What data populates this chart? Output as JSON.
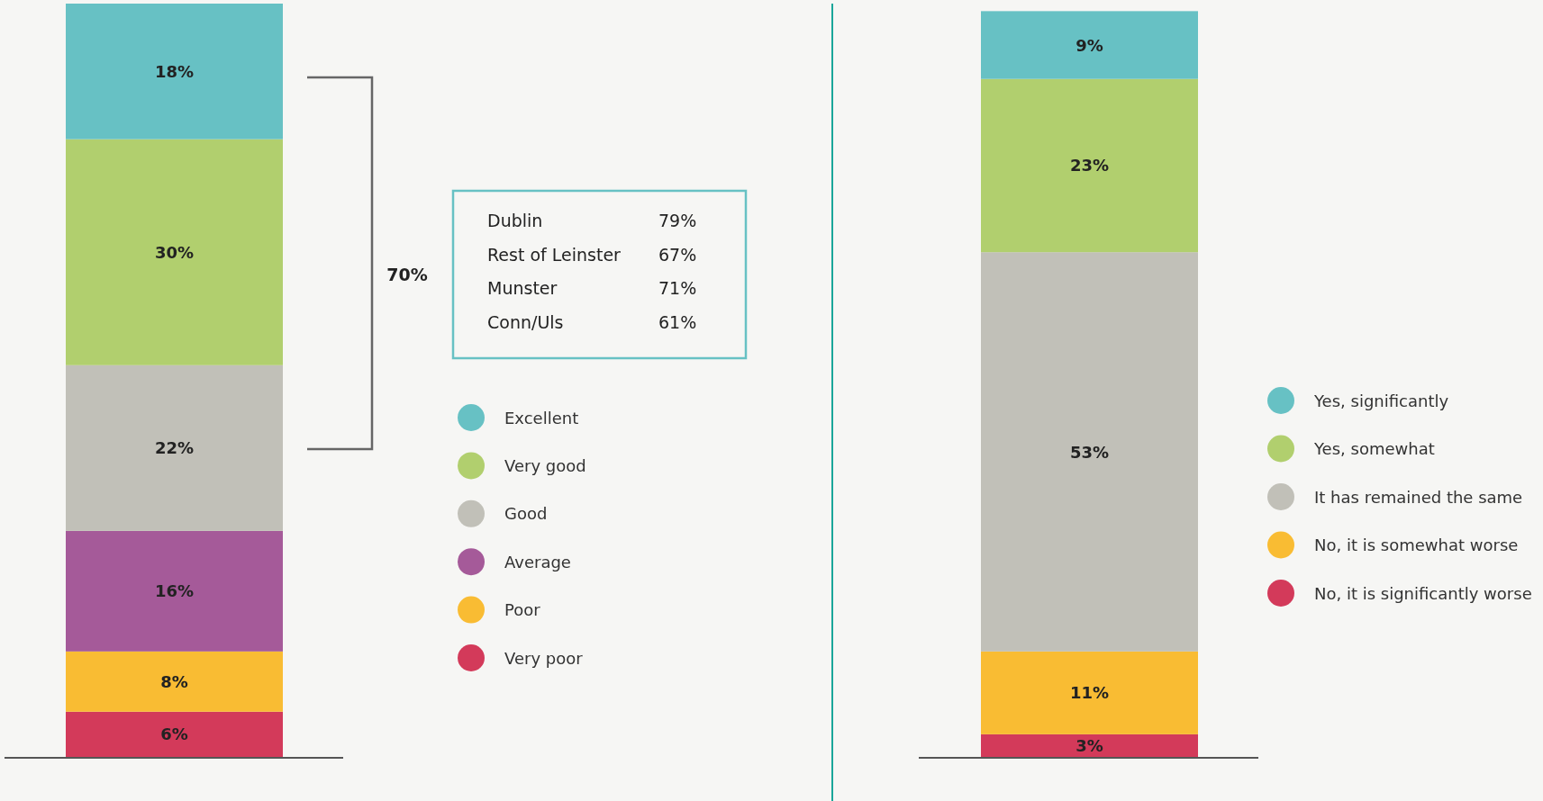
{
  "chart_data": [
    {
      "type": "bar",
      "stacked": true,
      "categories": [
        null
      ],
      "legend": "right",
      "series": [
        {
          "name": "Very poor",
          "color": "#d33a5a",
          "values": [
            6
          ],
          "value_labels": [
            "6%"
          ]
        },
        {
          "name": "Poor",
          "color": "#f9bc33",
          "values": [
            8
          ],
          "value_labels": [
            "8%"
          ]
        },
        {
          "name": "Average",
          "color": "#a55a99",
          "values": [
            16
          ],
          "value_labels": [
            "16%"
          ]
        },
        {
          "name": "Good",
          "color": "#c1c0b8",
          "values": [
            22
          ],
          "value_labels": [
            "22%"
          ]
        },
        {
          "name": "Very good",
          "color": "#b1cf6e",
          "values": [
            30
          ],
          "value_labels": [
            "30%"
          ]
        },
        {
          "name": "Excellent",
          "color": "#67c1c4",
          "values": [
            18
          ],
          "value_labels": [
            "18%"
          ]
        }
      ],
      "annotations": [
        "70%",
        "Dublin",
        "79%",
        "Rest of Leinster",
        "67%",
        "Munster",
        "71%",
        "Conn/Uls",
        "61%"
      ]
    },
    {
      "type": "bar",
      "stacked": true,
      "categories": [
        null
      ],
      "legend": "right",
      "series": [
        {
          "name": "No, it is significantly worse",
          "color": "#d33a5a",
          "values": [
            3
          ],
          "value_labels": [
            "3%"
          ]
        },
        {
          "name": "No, it is somewhat worse",
          "color": "#f9bc33",
          "values": [
            11
          ],
          "value_labels": [
            "11%"
          ]
        },
        {
          "name": "It has remained the same",
          "color": "#c1c0b8",
          "values": [
            53
          ],
          "value_labels": [
            "53%"
          ]
        },
        {
          "name": "Yes, somewhat",
          "color": "#b1cf6e",
          "values": [
            23
          ],
          "value_labels": [
            "23%"
          ]
        },
        {
          "name": "Yes, significantly",
          "color": "#67c1c4",
          "values": [
            9
          ],
          "value_labels": [
            "9%"
          ]
        }
      ]
    }
  ]
}
